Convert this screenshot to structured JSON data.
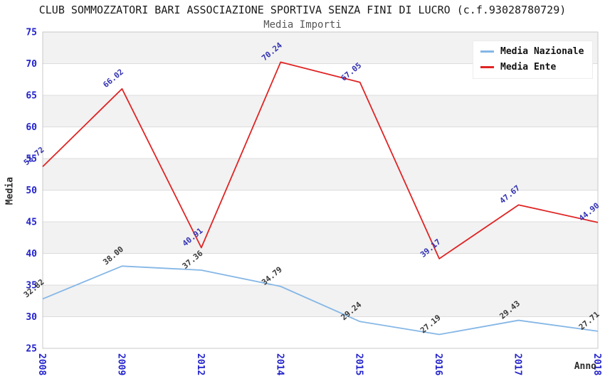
{
  "title": "CLUB SOMMOZZATORI BARI ASSOCIAZIONE SPORTIVA SENZA FINI DI LUCRO (c.f.93028780729)",
  "subtitle": "Media Importi",
  "colors": {
    "tick_label": "#2323cc",
    "band": "#f2f2f2",
    "grid": "#dcdcdc",
    "plot_border": "#c8c8c8",
    "title": "#1a1a1a",
    "subtitle": "#555555"
  },
  "chart_data": {
    "type": "line",
    "categories": [
      "2008",
      "2009",
      "2012",
      "2014",
      "2015",
      "2016",
      "2017",
      "2018"
    ],
    "series": [
      {
        "name": "Media Nazionale",
        "color": "#85b7e6",
        "label_color": "#3b3b3b",
        "values": [
          32.82,
          38.0,
          37.36,
          34.79,
          29.24,
          27.19,
          29.43,
          27.71
        ]
      },
      {
        "name": "Media Ente",
        "color": "#e02424",
        "label_color": "#3434b4",
        "values": [
          53.72,
          66.02,
          40.91,
          70.24,
          67.05,
          39.17,
          47.67,
          44.9
        ]
      }
    ],
    "title": "Media Importi",
    "xlabel": "Anno",
    "ylabel": "Media",
    "ylim": [
      25,
      75
    ],
    "ytick_step": 5,
    "grid": true,
    "banded_background": true,
    "legend_position": "top-right",
    "point_labels": "two-decimal values shown rotated above each point"
  }
}
